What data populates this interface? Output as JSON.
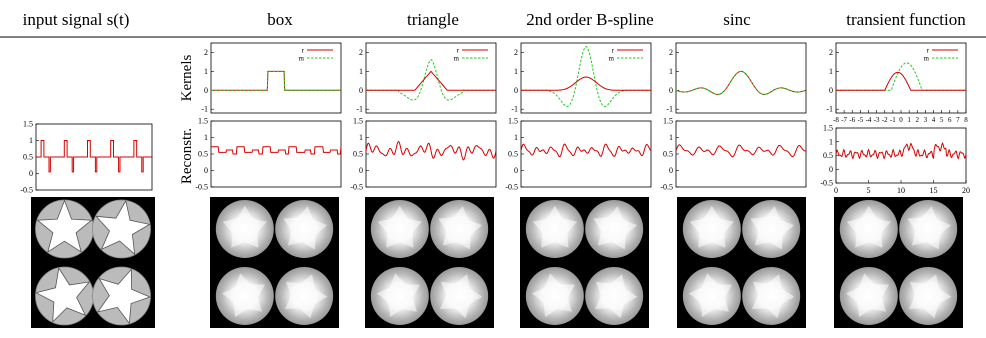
{
  "figure": {
    "columns": [
      {
        "label": "input signal s(t)"
      },
      {
        "label": "box"
      },
      {
        "label": "triangle"
      },
      {
        "label": "2nd order B-spline"
      },
      {
        "label": "sinc"
      },
      {
        "label": "transient function"
      }
    ],
    "row_labels": {
      "kernels": "Kernels",
      "reconstruction": "Reconstr."
    },
    "legend": {
      "r": "r",
      "m": "m"
    },
    "colors": {
      "r": "#d40000",
      "m": "#22cc22",
      "star_fill": "#ffffff",
      "disc_fill": "#bbbbbb",
      "background": "#000000"
    }
  },
  "chart_data": [
    {
      "type": "line",
      "panel": "input signal",
      "xlim": [
        0,
        1
      ],
      "ylim": [
        -0.5,
        1.5
      ],
      "yticks": [
        "1.5",
        "1",
        "0.5",
        "0",
        "-0.5"
      ],
      "series": [
        {
          "values": [
            0.5,
            1,
            0.5,
            0,
            0.5,
            1,
            0.5,
            0,
            0.5,
            1,
            0.5,
            0,
            0.5,
            1,
            0.5,
            0,
            0.5,
            1,
            0.5,
            0
          ]
        }
      ]
    },
    {
      "type": "line",
      "panel": "box kernel",
      "ylim": [
        -1.2,
        2.5
      ],
      "yticks": [
        "2",
        "1",
        "0",
        "-1"
      ],
      "series": [
        {
          "name": "r",
          "kernel": "box"
        },
        {
          "name": "m",
          "kernel": "box"
        }
      ]
    },
    {
      "type": "line",
      "panel": "triangle kernel",
      "ylim": [
        -1.2,
        2.5
      ],
      "yticks": [
        "2",
        "1",
        "0",
        "-1"
      ],
      "series": [
        {
          "name": "r",
          "kernel": "triangle"
        },
        {
          "name": "m",
          "kernel": "triangle"
        }
      ]
    },
    {
      "type": "line",
      "panel": "B-spline kernel",
      "ylim": [
        -1.2,
        2.5
      ],
      "yticks": [
        "2",
        "1",
        "0",
        "-1"
      ],
      "series": [
        {
          "name": "r",
          "kernel": "bspline"
        },
        {
          "name": "m",
          "kernel": "bspline"
        }
      ]
    },
    {
      "type": "line",
      "panel": "sinc kernel",
      "ylim": [
        -1.2,
        2.5
      ],
      "yticks": [
        "2",
        "1",
        "0",
        "-1"
      ],
      "series": [
        {
          "name": "r",
          "kernel": "sinc"
        },
        {
          "name": "m",
          "kernel": "sinc"
        }
      ]
    },
    {
      "type": "line",
      "panel": "transient kernel",
      "ylim": [
        -1.2,
        2.5
      ],
      "yticks": [
        "2",
        "1",
        "0",
        "-1"
      ],
      "xticks": [
        "-8",
        "-7",
        "-6",
        "-5",
        "-4",
        "-3",
        "-2",
        "-1",
        "0",
        "1",
        "2",
        "3",
        "4",
        "5",
        "6",
        "7",
        "8"
      ],
      "series": [
        {
          "name": "r",
          "kernel": "transient"
        },
        {
          "name": "m",
          "kernel": "transient"
        }
      ]
    },
    {
      "type": "line",
      "panel": "box reconstruction",
      "ylim": [
        -0.5,
        1.5
      ],
      "yticks": [
        "1.5",
        "1",
        "0.5",
        "0",
        "-0.5"
      ]
    },
    {
      "type": "line",
      "panel": "triangle reconstruction",
      "ylim": [
        -0.5,
        1.5
      ],
      "yticks": [
        "1.5",
        "1",
        "0.5",
        "0",
        "-0.5"
      ]
    },
    {
      "type": "line",
      "panel": "B-spline reconstruction",
      "ylim": [
        -0.5,
        1.5
      ],
      "yticks": [
        "1.5",
        "1",
        "0.5",
        "0",
        "-0.5"
      ]
    },
    {
      "type": "line",
      "panel": "sinc reconstruction",
      "ylim": [
        -0.5,
        1.5
      ],
      "yticks": [
        "1.5",
        "1",
        "0.5",
        "0",
        "-0.5"
      ]
    },
    {
      "type": "line",
      "panel": "transient reconstruction",
      "ylim": [
        -0.5,
        1.5
      ],
      "yticks": [
        "1.5",
        "1",
        "0.5",
        "0",
        "-0.5"
      ],
      "xticks": [
        "0",
        "5",
        "10",
        "15",
        "20"
      ]
    }
  ]
}
